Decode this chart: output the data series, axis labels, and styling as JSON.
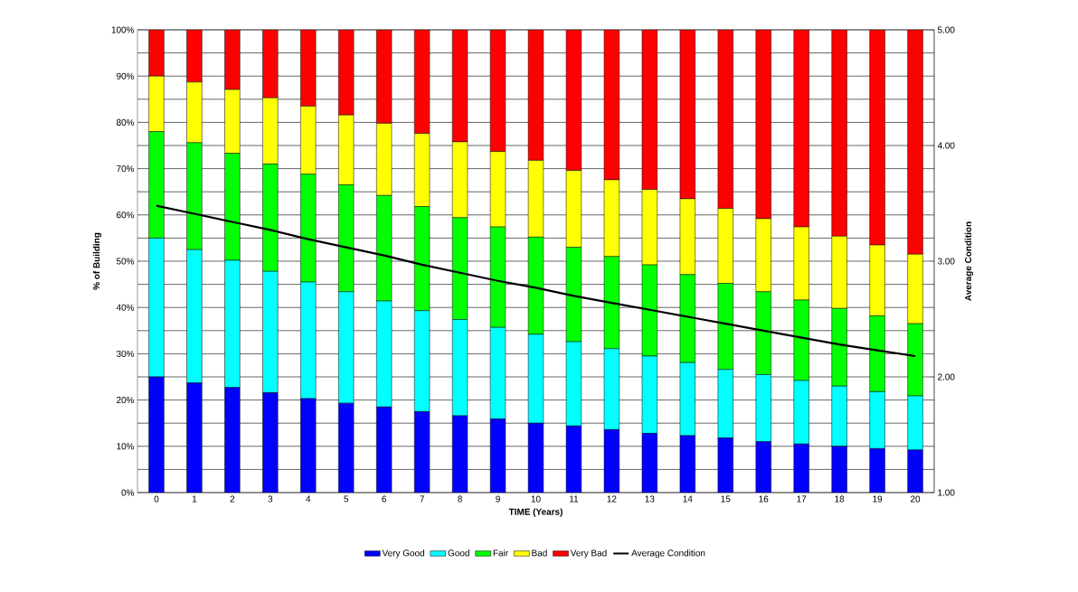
{
  "chart_data": {
    "type": "bar",
    "stacked": true,
    "xlabel": "TIME (Years)",
    "ylabel": "% of Building",
    "y2label": "Average Condition",
    "categories": [
      "0",
      "1",
      "2",
      "3",
      "4",
      "5",
      "6",
      "7",
      "8",
      "9",
      "10",
      "11",
      "12",
      "13",
      "14",
      "15",
      "16",
      "17",
      "18",
      "19",
      "20"
    ],
    "series": [
      {
        "name": "Very Good",
        "color": "#0000ff",
        "values": [
          25,
          23.7,
          22.7,
          21.6,
          20.3,
          19.3,
          18.5,
          17.5,
          16.6,
          15.9,
          15,
          14.4,
          13.6,
          12.8,
          12.3,
          11.8,
          11,
          10.5,
          10,
          9.5,
          9.2
        ]
      },
      {
        "name": "Good",
        "color": "#00ffff",
        "values": [
          30,
          28.8,
          27.5,
          26.2,
          25.2,
          24.1,
          22.9,
          21.8,
          20.8,
          19.8,
          19.2,
          18.2,
          17.5,
          16.7,
          15.8,
          14.8,
          14.5,
          13.7,
          13,
          12.3,
          11.7
        ]
      },
      {
        "name": "Fair",
        "color": "#00ff00",
        "values": [
          23,
          23.1,
          23.1,
          23.2,
          23.3,
          23.1,
          22.8,
          22.5,
          22,
          21.7,
          21,
          20.4,
          19.9,
          19.7,
          19,
          18.6,
          17.9,
          17.4,
          16.8,
          16.4,
          15.6
        ]
      },
      {
        "name": "Bad",
        "color": "#ffff00",
        "values": [
          12,
          13.1,
          13.8,
          14.3,
          14.7,
          15.1,
          15.6,
          15.8,
          16.4,
          16.3,
          16.6,
          16.6,
          16.6,
          16.3,
          16.4,
          16.2,
          15.8,
          15.8,
          15.6,
          15.3,
          15
        ]
      },
      {
        "name": "Very Bad",
        "color": "#ff0000",
        "values": [
          10,
          11.3,
          12.9,
          14.7,
          16.5,
          18.4,
          20.2,
          22.4,
          24.2,
          26.3,
          28.2,
          30.4,
          32.4,
          34.5,
          36.5,
          38.6,
          40.8,
          42.6,
          44.6,
          46.5,
          48.5
        ]
      },
      {
        "name": "Average Condition",
        "type": "line",
        "axis": "y2",
        "color": "#000000",
        "values": [
          3.48,
          3.41,
          3.34,
          3.27,
          3.19,
          3.12,
          3.05,
          2.97,
          2.9,
          2.83,
          2.77,
          2.7,
          2.64,
          2.58,
          2.52,
          2.46,
          2.4,
          2.34,
          2.28,
          2.23,
          2.18
        ]
      }
    ],
    "ylim": [
      0,
      100
    ],
    "yticks": [
      {
        "value": 0,
        "label": "0%"
      },
      {
        "value": 5,
        "label": null
      },
      {
        "value": 10,
        "label": "10%"
      },
      {
        "value": 15,
        "label": null
      },
      {
        "value": 20,
        "label": "20%"
      },
      {
        "value": 25,
        "label": null
      },
      {
        "value": 30,
        "label": "30%"
      },
      {
        "value": 35,
        "label": null
      },
      {
        "value": 40,
        "label": "40%"
      },
      {
        "value": 45,
        "label": null
      },
      {
        "value": 50,
        "label": "50%"
      },
      {
        "value": 55,
        "label": null
      },
      {
        "value": 60,
        "label": "60%"
      },
      {
        "value": 65,
        "label": null
      },
      {
        "value": 70,
        "label": "70%"
      },
      {
        "value": 75,
        "label": null
      },
      {
        "value": 80,
        "label": "80%"
      },
      {
        "value": 85,
        "label": null
      },
      {
        "value": 90,
        "label": "90%"
      },
      {
        "value": 95,
        "label": null
      },
      {
        "value": 100,
        "label": "100%"
      }
    ],
    "y2lim": [
      1,
      5
    ],
    "y2ticks": [
      {
        "value": 1,
        "label": "1.00"
      },
      {
        "value": 2,
        "label": "2.00"
      },
      {
        "value": 3,
        "label": "3.00"
      },
      {
        "value": 4,
        "label": "4.00"
      },
      {
        "value": 5,
        "label": "5.00"
      }
    ],
    "grid": "y",
    "legend": "bottom"
  }
}
